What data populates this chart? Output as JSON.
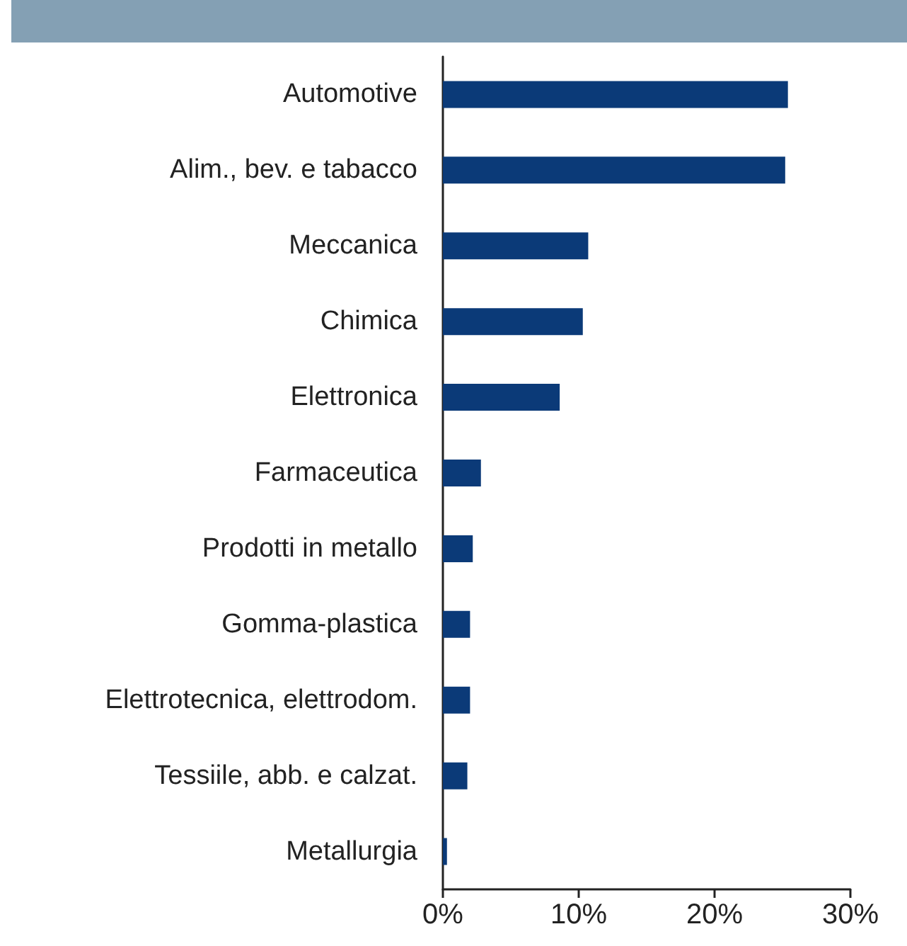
{
  "chart_data": {
    "type": "bar",
    "orientation": "horizontal",
    "categories": [
      "Automotive",
      "Alim., bev. e tabacco",
      "Meccanica",
      "Chimica",
      "Elettronica",
      "Farmaceutica",
      "Prodotti in metallo",
      "Gomma-plastica",
      "Elettrotecnica, elettrodom.",
      "Tessiile, abb. e calzat.",
      "Metallurgia"
    ],
    "values": [
      25.4,
      25.2,
      10.7,
      10.3,
      8.6,
      2.8,
      2.2,
      2.0,
      2.0,
      1.8,
      0.3
    ],
    "color": "#0b3a78",
    "xlim": [
      0,
      30
    ],
    "xticks": [
      {
        "value": 0,
        "label": "0%"
      },
      {
        "value": 10,
        "label": "10%"
      },
      {
        "value": 20,
        "label": "20%"
      },
      {
        "value": 30,
        "label": "30%"
      }
    ],
    "grid": false
  }
}
